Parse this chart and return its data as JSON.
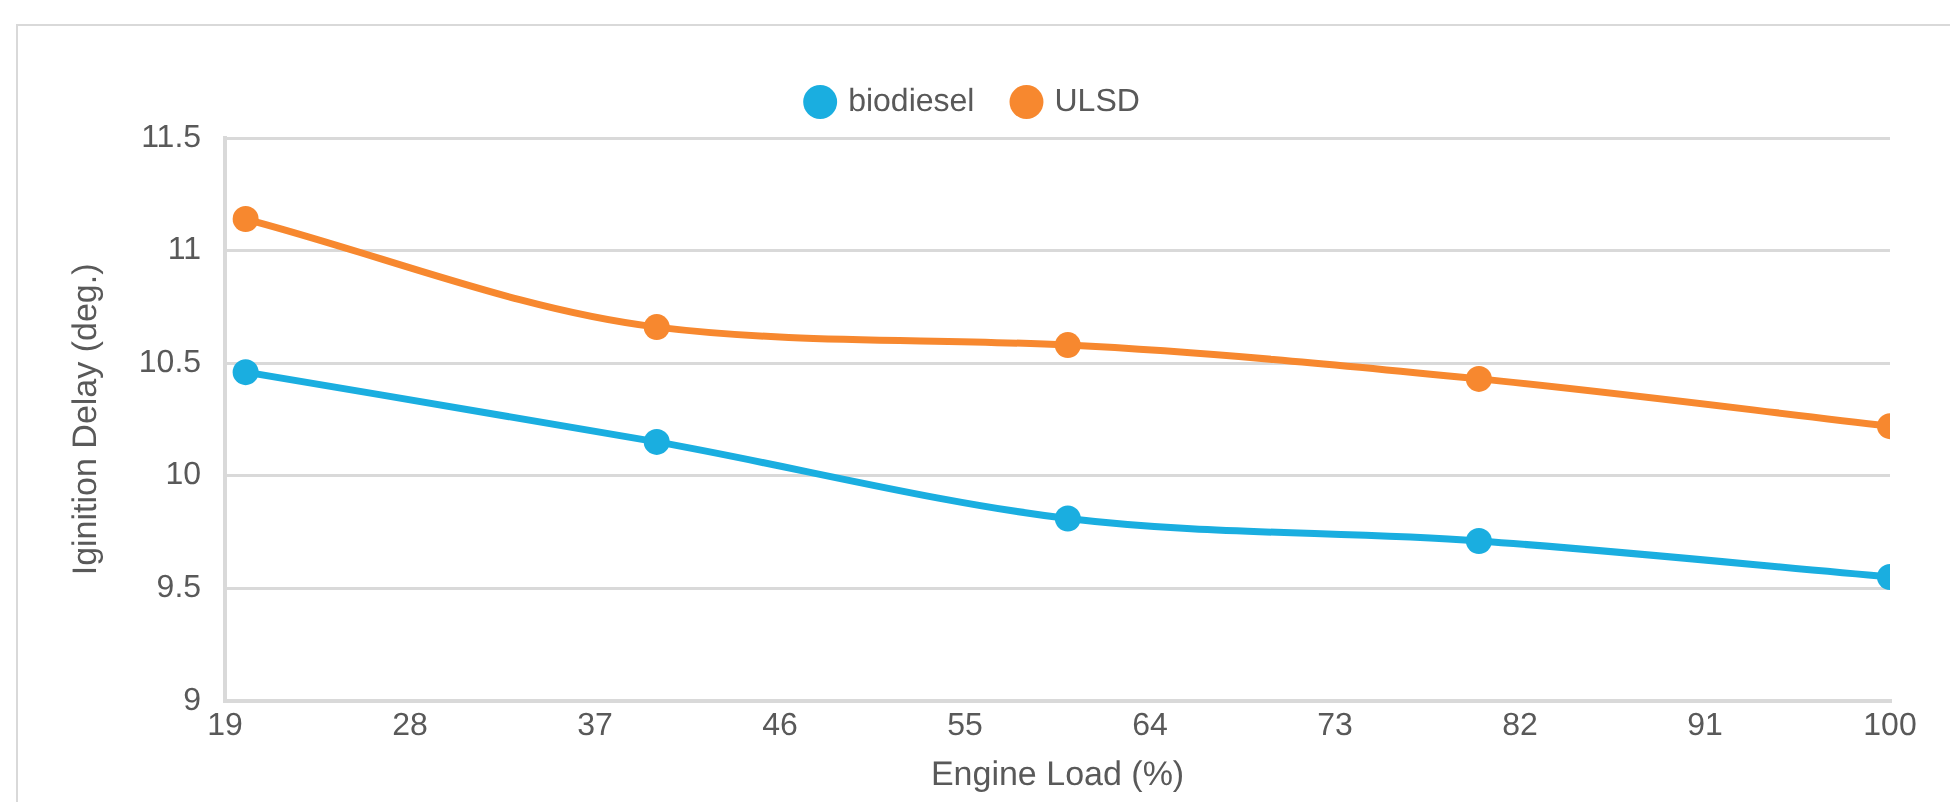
{
  "chart_data": {
    "type": "line",
    "xlabel": "Engine Load (%)",
    "ylabel": "Iginition Delay (deg.)",
    "x": [
      20,
      40,
      60,
      80,
      100
    ],
    "series": [
      {
        "name": "biodiesel",
        "color": "#1aaee0",
        "values": [
          10.46,
          10.15,
          9.81,
          9.71,
          9.55
        ]
      },
      {
        "name": "ULSD",
        "color": "#f7882f",
        "values": [
          11.14,
          10.66,
          10.58,
          10.43,
          10.22
        ]
      }
    ],
    "xlim": [
      19,
      100
    ],
    "xticks": [
      19,
      28,
      37,
      46,
      55,
      64,
      73,
      82,
      91,
      100
    ],
    "ylim": [
      9,
      11.5
    ],
    "yticks": [
      9,
      9.5,
      10,
      10.5,
      11,
      11.5
    ],
    "grid": "y",
    "legend": "top",
    "marker": "circle",
    "line_style": "solid"
  }
}
